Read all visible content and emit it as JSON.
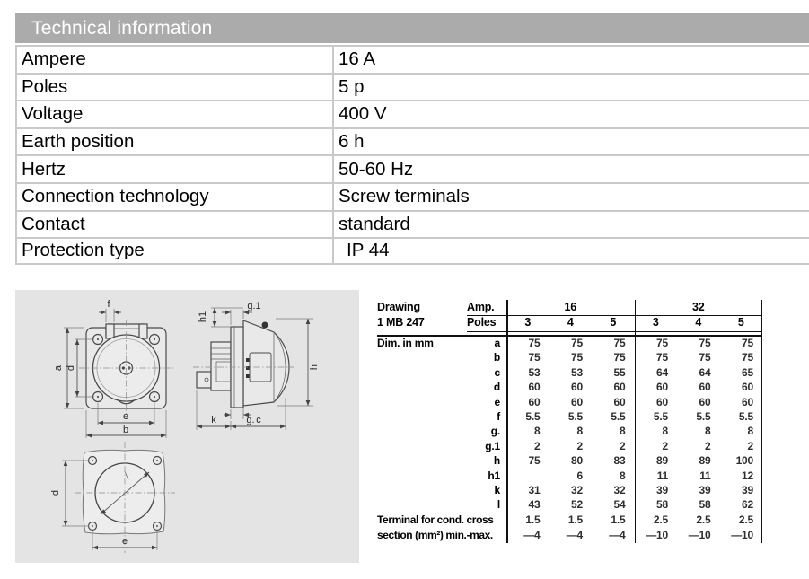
{
  "title": "Technical information",
  "spec_table": {
    "rows": [
      {
        "label": "Ampere",
        "value": "16 A"
      },
      {
        "label": "Poles",
        "value": "5 p"
      },
      {
        "label": "Voltage",
        "value": "400 V"
      },
      {
        "label": "Earth position",
        "value": "6 h"
      },
      {
        "label": "Hertz",
        "value": "50-60 Hz"
      },
      {
        "label": "Connection technology",
        "value": "Screw terminals"
      },
      {
        "label": "Contact",
        "value": "standard"
      },
      {
        "label": "Protection type",
        "value": "IP 44"
      }
    ]
  },
  "dim_table": {
    "drawing_label": "Drawing",
    "drawing_number": "1 MB 247",
    "amp_label": "Amp.",
    "poles_label": "Poles",
    "dim_unit_label": "Dim. in mm",
    "amp_groups": [
      "16",
      "32"
    ],
    "poles": [
      "3",
      "4",
      "5",
      "3",
      "4",
      "5"
    ],
    "rows": [
      {
        "dim": "a",
        "values": [
          "75",
          "75",
          "75",
          "75",
          "75",
          "75"
        ]
      },
      {
        "dim": "b",
        "values": [
          "75",
          "75",
          "75",
          "75",
          "75",
          "75"
        ]
      },
      {
        "dim": "c",
        "values": [
          "53",
          "53",
          "55",
          "64",
          "64",
          "65"
        ]
      },
      {
        "dim": "d",
        "values": [
          "60",
          "60",
          "60",
          "60",
          "60",
          "60"
        ]
      },
      {
        "dim": "e",
        "values": [
          "60",
          "60",
          "60",
          "60",
          "60",
          "60"
        ]
      },
      {
        "dim": "f",
        "values": [
          "5.5",
          "5.5",
          "5.5",
          "5.5",
          "5.5",
          "5.5"
        ]
      },
      {
        "dim": "g.",
        "values": [
          "8",
          "8",
          "8",
          "8",
          "8",
          "8"
        ]
      },
      {
        "dim": "g.1",
        "values": [
          "2",
          "2",
          "2",
          "2",
          "2",
          "2"
        ]
      },
      {
        "dim": "h",
        "values": [
          "75",
          "80",
          "83",
          "89",
          "89",
          "100"
        ]
      },
      {
        "dim": "h1",
        "values": [
          "",
          "6",
          "8",
          "11",
          "11",
          "12"
        ]
      },
      {
        "dim": "k",
        "values": [
          "31",
          "32",
          "32",
          "39",
          "39",
          "39"
        ]
      },
      {
        "dim": "l",
        "values": [
          "43",
          "52",
          "54",
          "58",
          "58",
          "62"
        ]
      }
    ],
    "terminal_label_line1": "Terminal for cond. cross",
    "terminal_label_line2": "section (mm²) min.-max.",
    "terminal_values_line1": [
      "1.5",
      "1.5",
      "1.5",
      "2.5",
      "2.5",
      "2.5"
    ],
    "terminal_values_line2": [
      "—4",
      "—4",
      "—4",
      "—10",
      "—10",
      "—10"
    ]
  },
  "drawings": {
    "front": {
      "f": "f",
      "a": "a",
      "d": "d",
      "e": "e",
      "b": "b"
    },
    "side": {
      "h1": "h1",
      "g1": "g.1",
      "h": "h",
      "g": "g.",
      "k": "k",
      "c": "c"
    },
    "cutout": {
      "d": "d",
      "e": "e"
    }
  },
  "colors": {
    "header_bg": "#ababab",
    "header_text": "#ffffff",
    "panel_bg": "#e4e4e4",
    "table_border": "#c9c9c9",
    "line_color": "#111111"
  }
}
